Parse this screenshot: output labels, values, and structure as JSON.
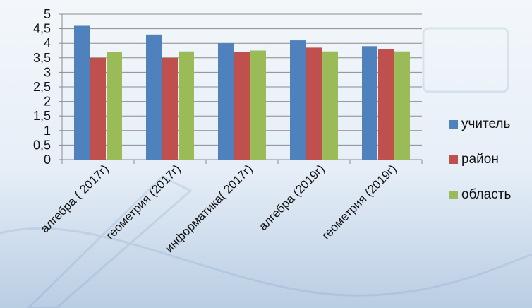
{
  "chart_data": {
    "type": "bar",
    "categories": [
      "алгебра ( 2017г)",
      "геометрия (2017г)",
      "информатика( 2017г)",
      "алгебра (2019г)",
      "геометрия (2019г)"
    ],
    "series": [
      {
        "name": "учитель",
        "color": "#4f81bd",
        "values": [
          4.6,
          4.3,
          4.0,
          4.1,
          3.9
        ]
      },
      {
        "name": "район",
        "color": "#c0504d",
        "values": [
          3.5,
          3.5,
          3.7,
          3.85,
          3.8
        ]
      },
      {
        "name": "область",
        "color": "#9bbb59",
        "values": [
          3.7,
          3.72,
          3.75,
          3.72,
          3.72
        ]
      }
    ],
    "yticks": [
      "0",
      "0,5",
      "1",
      "1,5",
      "2",
      "2,5",
      "3",
      "3,5",
      "4",
      "4,5",
      "5"
    ],
    "ylim": [
      0,
      5
    ],
    "grid": true,
    "legend_position": "right"
  }
}
